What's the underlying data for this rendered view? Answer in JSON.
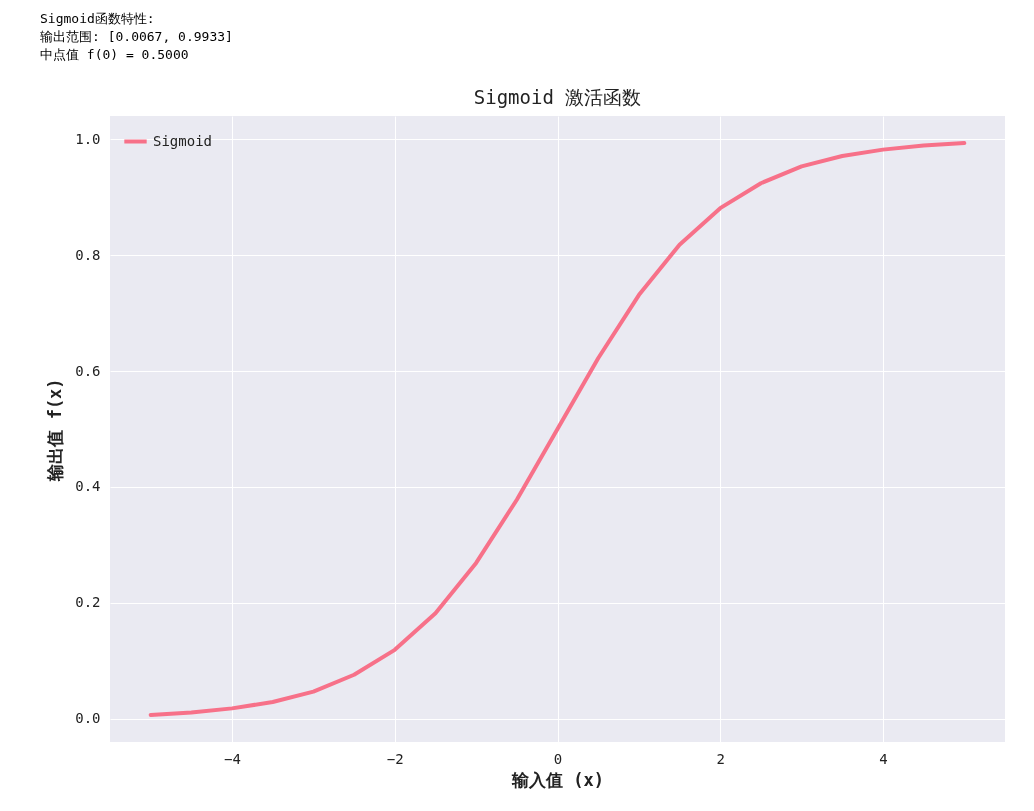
{
  "chart_data": {
    "type": "line",
    "title": "Sigmoid 激活函数",
    "xlabel": "输入值 (x)",
    "ylabel": "输出值 f(x)",
    "annotations": [
      "Sigmoid函数特性:",
      "输出范围: [0.0067, 0.9933]",
      "中点值 f(0) = 0.5000"
    ],
    "x": [
      -5,
      -4.5,
      -4,
      -3.5,
      -3,
      -2.5,
      -2,
      -1.5,
      -1,
      -0.5,
      0,
      0.5,
      1,
      1.5,
      2,
      2.5,
      3,
      3.5,
      4,
      4.5,
      5
    ],
    "series": [
      {
        "name": "Sigmoid",
        "color": "#f77189",
        "values": [
          0.0067,
          0.011,
          0.018,
          0.029,
          0.047,
          0.076,
          0.119,
          0.182,
          0.269,
          0.378,
          0.5,
          0.622,
          0.731,
          0.818,
          0.881,
          0.924,
          0.953,
          0.971,
          0.982,
          0.989,
          0.9933
        ]
      }
    ],
    "xlim": [
      -5.5,
      5.5
    ],
    "xticks": [
      -4,
      -2,
      0,
      2,
      4
    ],
    "ylim": [
      -0.04,
      1.04
    ],
    "yticks": [
      {
        "value": 0,
        "label": "0.0"
      },
      0.2,
      0.4,
      0.6,
      0.8,
      {
        "value": 1,
        "label": "1.0"
      }
    ],
    "grid": true,
    "legend": "top left",
    "line_style": "solid",
    "marker": "none"
  }
}
